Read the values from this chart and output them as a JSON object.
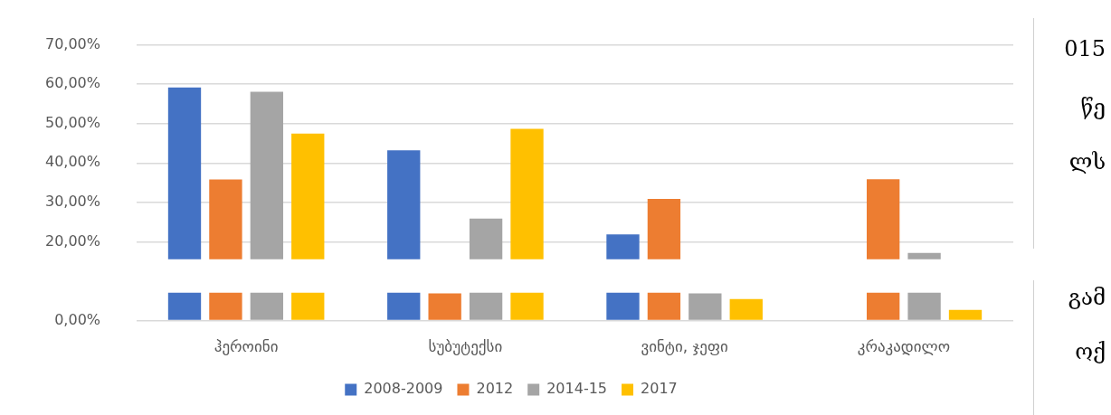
{
  "chart_data": {
    "type": "bar",
    "categories": [
      "ჰეროინი",
      "სუბუტექსი",
      "ვინტი, ჯეფი",
      "კრაკადილო"
    ],
    "series": [
      {
        "name": "2008-2009",
        "color": "#4472c4",
        "values": [
          59.2,
          43.2,
          21.9,
          null
        ]
      },
      {
        "name": "2012",
        "color": "#ed7d31",
        "values": [
          35.8,
          6.9,
          30.9,
          35.9
        ]
      },
      {
        "name": "2014-15",
        "color": "#a5a5a5",
        "values": [
          58.1,
          25.9,
          6.9,
          17.2
        ]
      },
      {
        "name": "2017",
        "color": "#ffc000",
        "values": [
          47.5,
          48.7,
          5.5,
          2.7
        ]
      }
    ],
    "ylim": [
      0,
      70
    ],
    "yticks": [
      {
        "value": 0,
        "label": "0,00%"
      },
      {
        "value": 20,
        "label": "20,00%"
      },
      {
        "value": 30,
        "label": "30,00%"
      },
      {
        "value": 40,
        "label": "40,00%"
      },
      {
        "value": 50,
        "label": "50,00%"
      },
      {
        "value": 60,
        "label": "60,00%"
      },
      {
        "value": 70,
        "label": "70,00%"
      }
    ],
    "bands": [
      {
        "axis": "y",
        "from": 7.1,
        "to": 15.6,
        "color": "#ffffff"
      }
    ],
    "grid": "y",
    "legend": "bottom",
    "annotations": [
      "015",
      "წე",
      "ლს",
      "გამ",
      "ოქ"
    ]
  }
}
